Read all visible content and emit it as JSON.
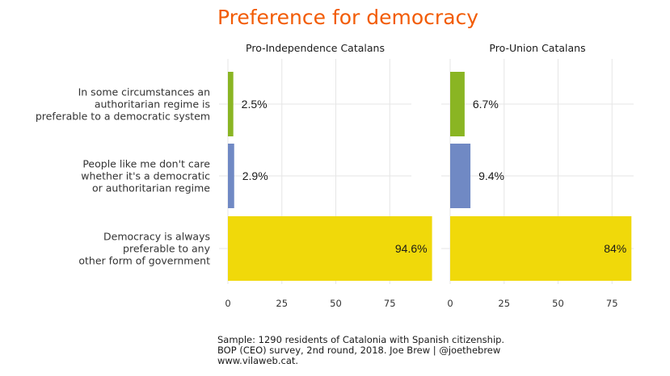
{
  "title": "Preference for democracy",
  "caption": [
    "Sample: 1290 residents of Catalonia with Spanish citizenship.",
    "BOP (CEO) survey, 2nd round, 2018. Joe Brew | @joethebrew",
    "www.vilaweb.cat."
  ],
  "chart_data": {
    "type": "bar",
    "orientation": "horizontal",
    "title": "Preference for democracy",
    "categories": [
      [
        "In some circumstances an",
        "authoritarian regime is",
        "preferable to a democratic system"
      ],
      [
        "People like me don't care",
        "whether it's a democratic",
        "or authoritarian regime"
      ],
      [
        "Democracy is always",
        "preferable to any",
        "other form of government"
      ]
    ],
    "category_colors": [
      "#8ab523",
      "#7089c4",
      "#f0d90a"
    ],
    "xlim": [
      0,
      100
    ],
    "xticks": [
      0,
      25,
      50,
      75
    ],
    "grid": true,
    "facets": [
      {
        "name": "Pro-Independence Catalans",
        "values": [
          2.5,
          2.9,
          94.6
        ],
        "labels": [
          "2.5%",
          "2.9%",
          "94.6%"
        ]
      },
      {
        "name": "Pro-Union Catalans",
        "values": [
          6.7,
          9.4,
          84
        ],
        "labels": [
          "6.7%",
          "9.4%",
          "84%"
        ]
      }
    ]
  }
}
